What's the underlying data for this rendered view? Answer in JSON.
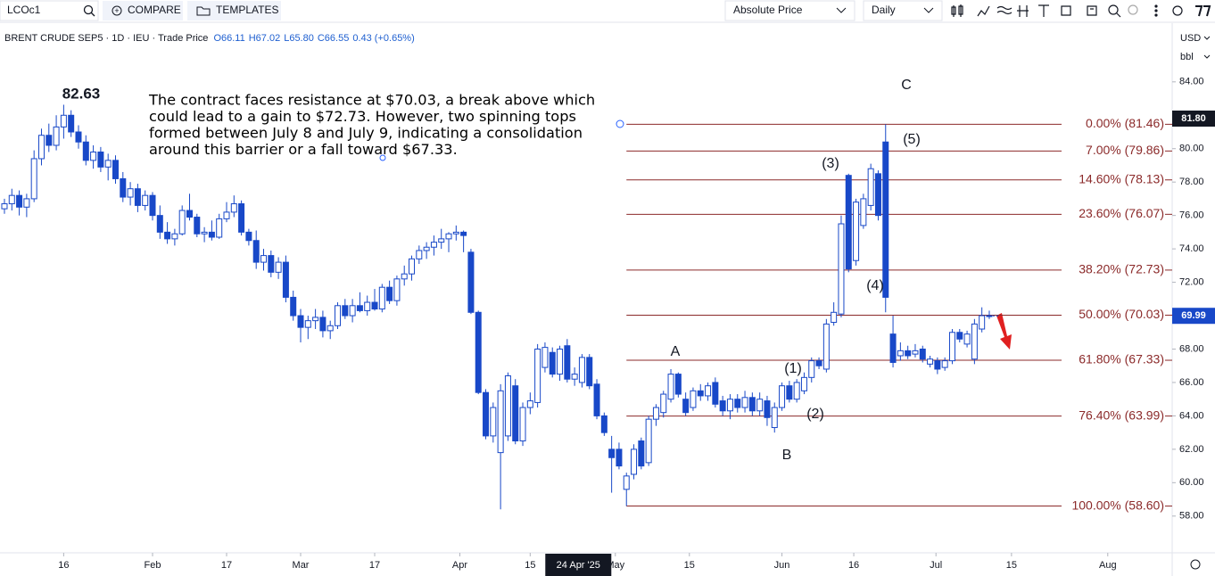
{
  "toolbar": {
    "symbol": "LCOc1",
    "compare": "COMPARE",
    "templates": "TEMPLATES",
    "price_mode": "Absolute Price",
    "interval": "Daily"
  },
  "legend": {
    "title": "BRENT CRUDE SEP5",
    "interval": "1D",
    "exchange": "IEU",
    "source": "Trade Price",
    "open": "O66.11",
    "high": "H67.02",
    "low": "L65.80",
    "close": "C66.55",
    "change": "0.43 (+0.65%)"
  },
  "chart_data": {
    "type": "candlestick",
    "up_color": "#ffffff",
    "down_color": "#1848c8",
    "border_color": "#1848c8",
    "ohlc": [
      [
        76.4,
        77.0,
        76.1,
        76.7
      ],
      [
        76.7,
        77.6,
        76.3,
        77.2
      ],
      [
        77.2,
        77.5,
        76.0,
        76.5
      ],
      [
        76.5,
        77.3,
        75.9,
        77.0
      ],
      [
        77.0,
        79.9,
        76.8,
        79.4
      ],
      [
        79.4,
        81.2,
        79.0,
        80.8
      ],
      [
        80.8,
        81.5,
        79.8,
        80.2
      ],
      [
        80.2,
        82.0,
        79.9,
        81.3
      ],
      [
        81.3,
        82.63,
        80.6,
        82.0
      ],
      [
        82.0,
        82.3,
        80.7,
        81.0
      ],
      [
        81.0,
        81.4,
        80.0,
        80.4
      ],
      [
        80.4,
        80.8,
        79.0,
        79.3
      ],
      [
        79.3,
        80.2,
        78.8,
        79.8
      ],
      [
        79.8,
        80.1,
        78.6,
        78.9
      ],
      [
        78.9,
        79.7,
        78.1,
        79.3
      ],
      [
        79.3,
        79.6,
        77.9,
        78.2
      ],
      [
        78.2,
        78.6,
        76.8,
        77.1
      ],
      [
        77.1,
        78.0,
        76.6,
        77.6
      ],
      [
        77.6,
        77.9,
        76.2,
        76.6
      ],
      [
        76.6,
        77.5,
        76.3,
        77.2
      ],
      [
        77.2,
        77.4,
        75.7,
        76.0
      ],
      [
        76.0,
        76.6,
        74.6,
        75.0
      ],
      [
        75.0,
        75.6,
        74.3,
        74.6
      ],
      [
        74.6,
        75.2,
        74.2,
        74.9
      ],
      [
        74.9,
        76.6,
        74.8,
        76.3
      ],
      [
        76.3,
        77.3,
        75.7,
        75.9
      ],
      [
        75.9,
        76.1,
        74.7,
        74.9
      ],
      [
        74.9,
        75.3,
        74.4,
        75.0
      ],
      [
        75.0,
        75.7,
        74.5,
        74.7
      ],
      [
        74.7,
        76.1,
        74.6,
        75.8
      ],
      [
        75.8,
        76.8,
        75.6,
        76.2
      ],
      [
        76.2,
        77.2,
        75.9,
        76.7
      ],
      [
        76.7,
        76.9,
        74.8,
        75.0
      ],
      [
        75.0,
        75.2,
        74.2,
        74.5
      ],
      [
        74.5,
        75.1,
        72.8,
        73.2
      ],
      [
        73.2,
        74.0,
        72.7,
        73.6
      ],
      [
        73.6,
        73.9,
        72.3,
        72.6
      ],
      [
        72.6,
        73.5,
        72.2,
        73.2
      ],
      [
        73.2,
        73.6,
        70.8,
        71.1
      ],
      [
        71.1,
        71.5,
        69.7,
        70.0
      ],
      [
        70.0,
        70.4,
        68.4,
        69.3
      ],
      [
        69.3,
        70.0,
        68.6,
        69.7
      ],
      [
        69.7,
        70.4,
        69.2,
        69.9
      ],
      [
        69.9,
        70.3,
        68.7,
        69.1
      ],
      [
        69.1,
        69.7,
        68.6,
        69.4
      ],
      [
        69.4,
        70.8,
        69.2,
        70.6
      ],
      [
        70.6,
        71.0,
        69.8,
        70.0
      ],
      [
        70.0,
        71.0,
        69.6,
        70.6
      ],
      [
        70.6,
        71.4,
        70.2,
        70.3
      ],
      [
        70.3,
        71.2,
        70.0,
        70.8
      ],
      [
        70.8,
        71.6,
        70.3,
        70.4
      ],
      [
        70.4,
        71.9,
        70.2,
        71.7
      ],
      [
        71.7,
        72.1,
        70.7,
        70.9
      ],
      [
        70.9,
        72.4,
        70.6,
        72.2
      ],
      [
        72.2,
        73.0,
        71.8,
        72.5
      ],
      [
        72.5,
        73.6,
        72.1,
        73.4
      ],
      [
        73.4,
        74.2,
        73.1,
        73.9
      ],
      [
        73.9,
        74.4,
        73.4,
        74.1
      ],
      [
        74.1,
        74.8,
        73.6,
        74.4
      ],
      [
        74.4,
        75.2,
        74.0,
        74.6
      ],
      [
        74.6,
        75.0,
        73.8,
        74.9
      ],
      [
        74.9,
        75.4,
        74.5,
        75.0
      ],
      [
        75.0,
        75.1,
        73.8,
        74.8
      ],
      [
        73.8,
        74.0,
        70.1,
        70.2
      ],
      [
        70.2,
        70.3,
        65.3,
        65.4
      ],
      [
        65.4,
        65.6,
        62.6,
        62.8
      ],
      [
        62.8,
        64.8,
        62.4,
        64.5
      ],
      [
        61.8,
        65.9,
        58.4,
        65.5
      ],
      [
        62.8,
        66.6,
        62.5,
        66.4
      ],
      [
        65.8,
        66.2,
        62.3,
        62.5
      ],
      [
        62.5,
        64.8,
        62.2,
        64.5
      ],
      [
        64.5,
        65.4,
        64.1,
        64.9
      ],
      [
        64.8,
        68.3,
        64.5,
        68.0
      ],
      [
        66.9,
        68.4,
        66.6,
        68.1
      ],
      [
        67.8,
        68.1,
        66.3,
        66.5
      ],
      [
        66.5,
        68.2,
        66.1,
        68.0
      ],
      [
        68.2,
        68.6,
        66.0,
        66.2
      ],
      [
        66.2,
        66.9,
        65.8,
        66.5
      ],
      [
        66.0,
        67.7,
        65.7,
        67.5
      ],
      [
        67.5,
        67.7,
        65.6,
        65.8
      ],
      [
        65.9,
        66.2,
        63.8,
        64.0
      ],
      [
        64.0,
        64.2,
        62.8,
        63.0
      ],
      [
        62.0,
        62.8,
        59.4,
        61.5
      ],
      [
        62.0,
        62.4,
        60.8,
        61.0
      ],
      [
        59.6,
        60.6,
        58.6,
        60.4
      ],
      [
        60.5,
        62.3,
        60.2,
        62.0
      ],
      [
        62.5,
        62.7,
        60.8,
        61.0
      ],
      [
        61.2,
        64.0,
        61.0,
        63.8
      ],
      [
        63.8,
        64.7,
        63.4,
        64.5
      ],
      [
        64.2,
        65.5,
        63.9,
        65.3
      ],
      [
        65.0,
        66.8,
        64.8,
        66.5
      ],
      [
        66.5,
        66.6,
        65.1,
        65.3
      ],
      [
        65.0,
        65.4,
        64.0,
        64.2
      ],
      [
        64.5,
        65.7,
        64.3,
        65.5
      ],
      [
        65.5,
        65.9,
        64.9,
        65.2
      ],
      [
        65.2,
        66.0,
        64.9,
        65.8
      ],
      [
        66.0,
        66.3,
        64.5,
        64.7
      ],
      [
        64.9,
        65.2,
        64.0,
        64.3
      ],
      [
        64.3,
        65.3,
        63.8,
        65.0
      ],
      [
        65.0,
        65.3,
        64.2,
        64.5
      ],
      [
        64.5,
        65.5,
        64.2,
        65.1
      ],
      [
        65.1,
        65.4,
        64.0,
        64.3
      ],
      [
        64.3,
        65.4,
        64.0,
        65.0
      ],
      [
        64.9,
        65.2,
        63.4,
        63.9
      ],
      [
        63.3,
        64.8,
        63.0,
        64.5
      ],
      [
        64.5,
        66.0,
        64.3,
        65.8
      ],
      [
        65.8,
        66.1,
        64.8,
        65.0
      ],
      [
        65.0,
        66.2,
        64.8,
        66.0
      ],
      [
        65.5,
        66.6,
        65.3,
        66.3
      ],
      [
        66.3,
        67.5,
        66.0,
        67.3
      ],
      [
        67.3,
        67.5,
        66.8,
        67.0
      ],
      [
        66.8,
        69.8,
        66.6,
        69.5
      ],
      [
        69.6,
        70.8,
        69.4,
        70.2
      ],
      [
        70.1,
        76.0,
        69.9,
        75.5
      ],
      [
        78.4,
        78.5,
        72.6,
        72.8
      ],
      [
        73.3,
        77.0,
        73.0,
        76.8
      ],
      [
        75.4,
        77.3,
        75.2,
        77.0
      ],
      [
        76.6,
        79.1,
        76.3,
        78.8
      ],
      [
        78.5,
        78.7,
        75.7,
        76.0
      ],
      [
        80.4,
        81.46,
        70.2,
        71.1
      ],
      [
        68.9,
        70.0,
        66.9,
        67.2
      ],
      [
        67.6,
        68.4,
        67.3,
        67.9
      ],
      [
        67.9,
        68.2,
        67.4,
        67.6
      ],
      [
        67.7,
        68.3,
        67.5,
        67.9
      ],
      [
        68.0,
        68.2,
        67.2,
        67.4
      ],
      [
        67.1,
        67.6,
        66.9,
        67.4
      ],
      [
        67.3,
        67.5,
        66.5,
        66.8
      ],
      [
        66.9,
        67.5,
        66.7,
        67.3
      ],
      [
        67.3,
        69.2,
        67.1,
        69.0
      ],
      [
        69.0,
        69.2,
        68.4,
        68.6
      ],
      [
        68.3,
        69.1,
        68.1,
        68.9
      ],
      [
        67.4,
        69.8,
        67.1,
        69.5
      ],
      [
        69.2,
        70.5,
        69.0,
        70.0
      ],
      [
        70.0,
        70.3,
        69.8,
        69.99
      ]
    ],
    "xlim": [
      -0.6,
      157.7
    ],
    "xticks": [
      {
        "value": 8,
        "label": "16"
      },
      {
        "value": 20,
        "label": "Feb"
      },
      {
        "value": 30,
        "label": "17"
      },
      {
        "value": 40,
        "label": "Mar"
      },
      {
        "value": 50,
        "label": "17"
      },
      {
        "value": 61.5,
        "label": "Apr"
      },
      {
        "value": 71,
        "label": "15"
      },
      {
        "value": 82.5,
        "label": "May"
      },
      {
        "value": 92.5,
        "label": "15"
      },
      {
        "value": 105,
        "label": "Jun"
      },
      {
        "value": 114.7,
        "label": "16"
      },
      {
        "value": 125.8,
        "label": "Jul"
      },
      {
        "value": 136,
        "label": "15"
      },
      {
        "value": 149,
        "label": "Aug"
      }
    ],
    "crosshair_x": {
      "value": 77.5,
      "label": "24 Apr '25"
    },
    "ylim": [
      55.8,
      87.3
    ],
    "yticks": [
      {
        "value": 58,
        "label": "58.00"
      },
      {
        "value": 60,
        "label": "60.00"
      },
      {
        "value": 62,
        "label": "62.00"
      },
      {
        "value": 64,
        "label": "64.00"
      },
      {
        "value": 66,
        "label": "66.00"
      },
      {
        "value": 68,
        "label": "68.00"
      },
      {
        "value": 70,
        "label": "70.00"
      },
      {
        "value": 72,
        "label": "72.00"
      },
      {
        "value": 74,
        "label": "74.00"
      },
      {
        "value": 76,
        "label": "76.00"
      },
      {
        "value": 78,
        "label": "78.00"
      },
      {
        "value": 80,
        "label": "80.00"
      },
      {
        "value": 82,
        "label": "82.00"
      },
      {
        "value": 84,
        "label": "84.00"
      }
    ],
    "price_tags": [
      {
        "value": 81.8,
        "label": "81.80",
        "color": "#131722"
      },
      {
        "value": 69.99,
        "label": "69.99",
        "color": "#1848c8"
      }
    ],
    "currency": "USD",
    "unit": "bbl",
    "fib_color": "#8b2a2a",
    "fib_levels": [
      {
        "value": 81.46,
        "label": "0.00% (81.46)"
      },
      {
        "value": 79.86,
        "label": "7.00% (79.86)"
      },
      {
        "value": 78.13,
        "label": "14.60% (78.13)"
      },
      {
        "value": 76.07,
        "label": "23.60% (76.07)"
      },
      {
        "value": 72.73,
        "label": "38.20% (72.73)"
      },
      {
        "value": 70.03,
        "label": "50.00% (70.03)"
      },
      {
        "value": 67.33,
        "label": "61.80% (67.33)"
      },
      {
        "value": 63.99,
        "label": "76.40% (63.99)"
      },
      {
        "value": 58.6,
        "label": "100.00% (58.60)"
      }
    ],
    "annotations": [
      "82.63",
      "A",
      "B",
      "C",
      "(1)",
      "(2)",
      "(3)",
      "(4)",
      "(5)"
    ],
    "commentary": [
      "The contract faces resistance at $70.03, a break above which",
      "could lead to a gain to $72.73. However, two spinning tops",
      "formed between July 8 and July 9,  indicating a consolidation",
      "around this barrier or a fall toward $67.33."
    ]
  }
}
